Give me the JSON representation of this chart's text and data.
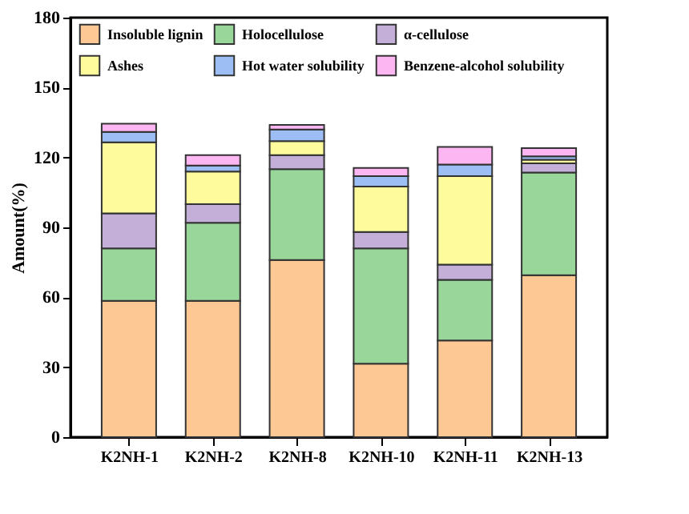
{
  "chart_data": {
    "type": "bar",
    "stacked": true,
    "ylabel": "Amount(%)",
    "categories": [
      "K2NH-1",
      "K2NH-2",
      "K2NH-8",
      "K2NH-10",
      "K2NH-11",
      "K2NH-13"
    ],
    "series": [
      {
        "name": "Insoluble lignin",
        "color": "#fdc894",
        "values": [
          58.5,
          58.5,
          76,
          31.5,
          41.5,
          69.5
        ]
      },
      {
        "name": "Holocellulose",
        "color": "#98d69a",
        "values": [
          22.5,
          33.5,
          39,
          49.5,
          26,
          44
        ]
      },
      {
        "name": "α-cellulose",
        "color": "#c3afd8",
        "values": [
          15,
          8,
          6,
          7,
          6.5,
          4
        ]
      },
      {
        "name": "Ashes",
        "color": "#fdfb9c",
        "values": [
          30.5,
          14,
          6,
          19.5,
          38,
          1.5
        ]
      },
      {
        "name": "Hot water solubility",
        "color": "#9dbef5",
        "values": [
          4.5,
          2.5,
          5,
          4.5,
          5,
          1.5
        ]
      },
      {
        "name": "Benzene-alcohol solubility",
        "color": "#fcb6f1",
        "values": [
          3.5,
          4.5,
          2,
          3.5,
          7.5,
          3.5
        ]
      }
    ],
    "ylim": [
      0,
      180
    ],
    "yticks": [
      0,
      30,
      60,
      90,
      120,
      150,
      180
    ],
    "grid": false,
    "legend": "top"
  }
}
